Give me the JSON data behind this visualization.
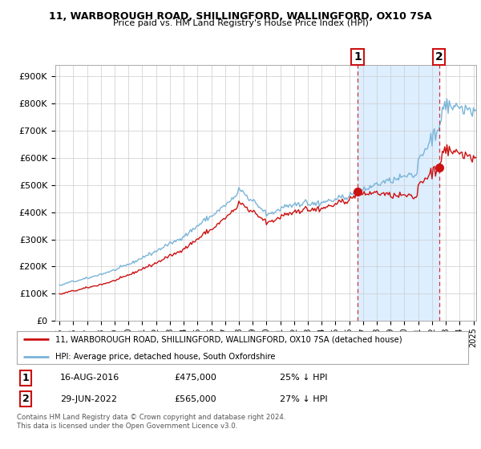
{
  "title": "11, WARBOROUGH ROAD, SHILLINGFORD, WALLINGFORD, OX10 7SA",
  "subtitle": "Price paid vs. HM Land Registry's House Price Index (HPI)",
  "legend_line1": "11, WARBOROUGH ROAD, SHILLINGFORD, WALLINGFORD, OX10 7SA (detached house)",
  "legend_line2": "HPI: Average price, detached house, South Oxfordshire",
  "footnote": "Contains HM Land Registry data © Crown copyright and database right 2024.\nThis data is licensed under the Open Government Licence v3.0.",
  "point1_label": "1",
  "point1_date": "16-AUG-2016",
  "point1_price": "£475,000",
  "point1_hpi": "25% ↓ HPI",
  "point2_label": "2",
  "point2_date": "29-JUN-2022",
  "point2_price": "£565,000",
  "point2_hpi": "27% ↓ HPI",
  "hpi_color": "#7ab4d8",
  "price_color": "#cc1111",
  "dashed_color": "#cc1111",
  "shade_color": "#ddeeff",
  "background_color": "#ffffff",
  "grid_color": "#cccccc",
  "ylim": [
    0,
    940000
  ],
  "yticks": [
    0,
    100000,
    200000,
    300000,
    400000,
    500000,
    600000,
    700000,
    800000,
    900000
  ],
  "ytick_labels": [
    "£0",
    "£100K",
    "£200K",
    "£300K",
    "£400K",
    "£500K",
    "£600K",
    "£700K",
    "£800K",
    "£900K"
  ],
  "point1_x": 2016.625,
  "point1_y": 475000,
  "point2_x": 2022.5,
  "point2_y": 565000,
  "xlim_left": 1995.0,
  "xlim_right": 2025.2
}
